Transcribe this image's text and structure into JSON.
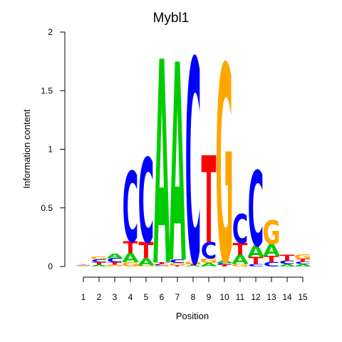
{
  "chart_data": {
    "type": "sequence-logo",
    "title": "Mybl1",
    "xlabel": "Position",
    "ylabel": "Information content",
    "ylim": [
      0,
      2
    ],
    "yticks": [
      "0",
      "0.5",
      "1",
      "1.5",
      "2"
    ],
    "positions": [
      "1",
      "2",
      "3",
      "4",
      "5",
      "6",
      "7",
      "8",
      "9",
      "10",
      "11",
      "12",
      "13",
      "14",
      "15"
    ],
    "colors": {
      "A": "#00cc00",
      "C": "#0000ff",
      "G": "#ffa500",
      "T": "#ff0000"
    },
    "stacks": [
      [
        [
          "A",
          0.005
        ],
        [
          "G",
          0.005
        ],
        [
          "C",
          0.005
        ],
        [
          "T",
          0.005
        ]
      ],
      [
        [
          "A",
          0.015
        ],
        [
          "T",
          0.02
        ],
        [
          "C",
          0.025
        ],
        [
          "G",
          0.025
        ]
      ],
      [
        [
          "G",
          0.015
        ],
        [
          "T",
          0.02
        ],
        [
          "C",
          0.035
        ],
        [
          "A",
          0.04
        ]
      ],
      [
        [
          "G",
          0.035
        ],
        [
          "A",
          0.08
        ],
        [
          "T",
          0.1
        ],
        [
          "C",
          0.6
        ]
      ],
      [
        [
          "G",
          0.01
        ],
        [
          "A",
          0.06
        ],
        [
          "T",
          0.14
        ],
        [
          "C",
          0.72
        ]
      ],
      [
        [
          "G",
          0.01
        ],
        [
          "C",
          0.01
        ],
        [
          "T",
          0.015
        ],
        [
          "A",
          1.74
        ]
      ],
      [
        [
          "T",
          0.01
        ],
        [
          "G",
          0.02
        ],
        [
          "C",
          0.03
        ],
        [
          "A",
          1.69
        ]
      ],
      [
        [
          "A",
          0.01
        ],
        [
          "T",
          0.01
        ],
        [
          "G",
          0.02
        ],
        [
          "C",
          1.74
        ]
      ],
      [
        [
          "A",
          0.03
        ],
        [
          "G",
          0.04
        ],
        [
          "C",
          0.14
        ],
        [
          "T",
          0.74
        ]
      ],
      [
        [
          "T",
          0.015
        ],
        [
          "C",
          0.015
        ],
        [
          "A",
          0.02
        ],
        [
          "G",
          1.68
        ]
      ],
      [
        [
          "G",
          0.02
        ],
        [
          "A",
          0.08
        ],
        [
          "T",
          0.1
        ],
        [
          "C",
          0.25
        ]
      ],
      [
        [
          "C",
          0.02
        ],
        [
          "T",
          0.06
        ],
        [
          "A",
          0.1
        ],
        [
          "C",
          0.64
        ]
      ],
      [
        [
          "C",
          0.04
        ],
        [
          "T",
          0.05
        ],
        [
          "A",
          0.1
        ],
        [
          "G",
          0.2
        ]
      ],
      [
        [
          "A",
          0.02
        ],
        [
          "C",
          0.03
        ],
        [
          "T",
          0.05
        ]
      ],
      [
        [
          "A",
          0.02
        ],
        [
          "C",
          0.02
        ],
        [
          "T",
          0.025
        ],
        [
          "G",
          0.04
        ]
      ]
    ]
  }
}
